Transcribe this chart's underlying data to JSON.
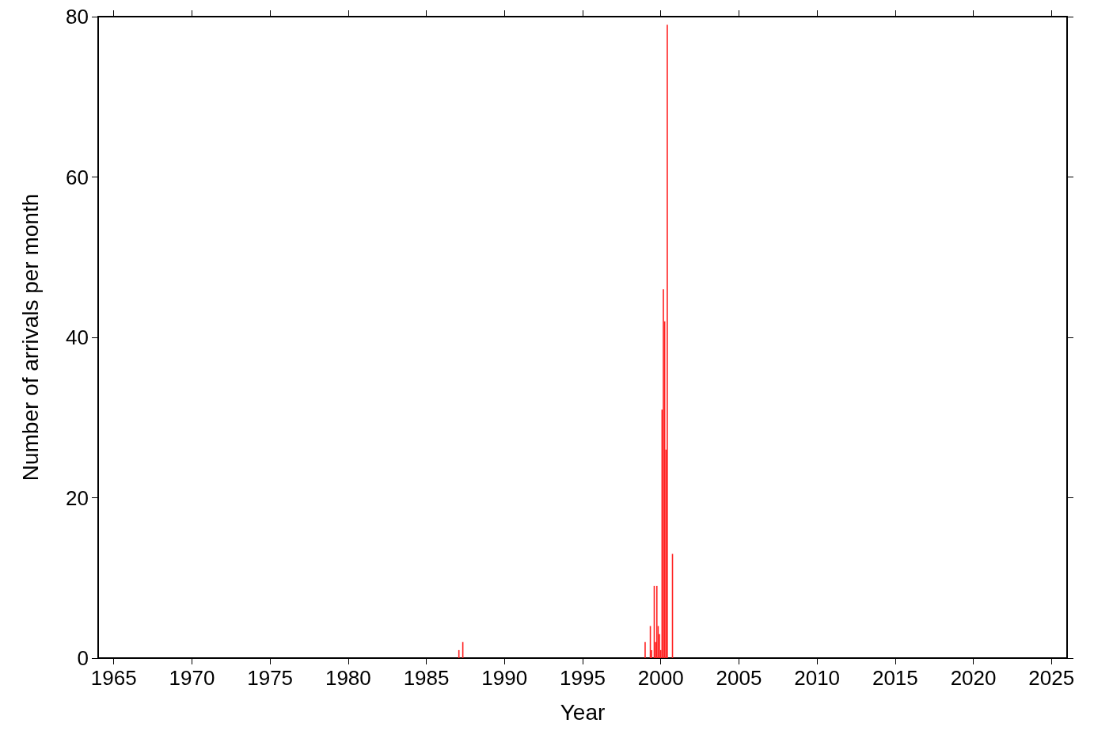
{
  "chart_data": {
    "type": "bar",
    "xlabel": "Year",
    "ylabel": "Number of arrivals per month",
    "x": [
      "1987-02",
      "1987-05",
      "1999-01",
      "1999-05",
      "1999-06",
      "1999-08",
      "1999-09",
      "1999-10",
      "1999-11",
      "1999-12",
      "2000-01",
      "2000-02",
      "2000-03",
      "2000-04",
      "2000-05",
      "2000-06",
      "2000-10"
    ],
    "values": [
      1,
      2,
      2,
      4,
      1,
      9,
      2,
      9,
      4,
      3,
      1,
      31,
      46,
      42,
      26,
      79,
      13
    ],
    "color": "#ff2020",
    "xlim": [
      "1964",
      "2026"
    ],
    "xticks": [
      "1965",
      "1970",
      "1975",
      "1980",
      "1985",
      "1990",
      "1995",
      "2000",
      "2005",
      "2010",
      "2015",
      "2020",
      "2025"
    ],
    "ylim": [
      0,
      80
    ],
    "yticks": [
      0,
      20,
      40,
      60,
      80
    ],
    "grid": false
  }
}
